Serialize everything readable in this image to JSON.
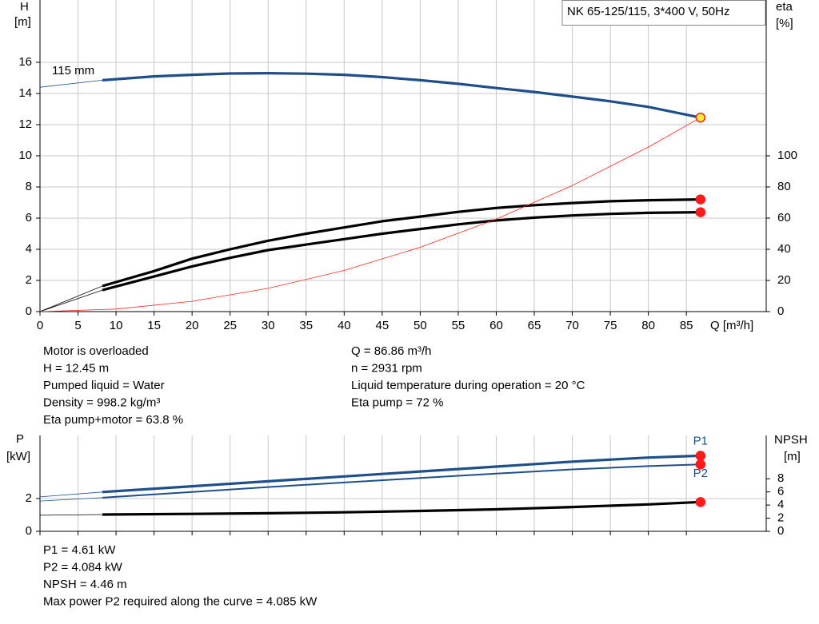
{
  "chart_data": [
    {
      "type": "line",
      "title": "NK 65-125/115, 3*400 V, 50Hz",
      "y_label": "H",
      "y_unit": "[m]",
      "y2_label": "eta",
      "y2_unit": "[%]",
      "x_label": "Q [m³/h]",
      "xlim": [
        0,
        95.5
      ],
      "xticks": [
        0,
        5,
        10,
        15,
        20,
        25,
        30,
        35,
        40,
        45,
        50,
        55,
        60,
        65,
        70,
        75,
        80,
        85
      ],
      "ylim": [
        0,
        20
      ],
      "yticks": [
        0,
        2,
        4,
        6,
        8,
        10,
        12,
        14,
        16
      ],
      "y2lim": [
        0,
        200
      ],
      "y2ticks": [
        0,
        20,
        40,
        60,
        80,
        100
      ],
      "grid": true,
      "x_tick_labels": true,
      "series": [
        {
          "name": "115 mm",
          "color": "#1f4f8a",
          "style": "thick-lead",
          "marker_color": "#ffee33",
          "axis": "y",
          "x": [
            0,
            8.2,
            15,
            20,
            25,
            30,
            35,
            40,
            45,
            50,
            55,
            60,
            65,
            70,
            75,
            80,
            86.86
          ],
          "values": [
            14.4,
            14.85,
            15.1,
            15.2,
            15.28,
            15.3,
            15.27,
            15.2,
            15.05,
            14.85,
            14.62,
            14.35,
            14.1,
            13.8,
            13.5,
            13.14,
            12.45
          ]
        },
        {
          "color": "#000000",
          "style": "thick-lead",
          "marker_color": "#ff1a1a",
          "axis": "y2",
          "x": [
            0,
            8.2,
            15,
            20,
            25,
            30,
            35,
            40,
            45,
            50,
            55,
            60,
            65,
            70,
            75,
            80,
            86.86
          ],
          "values": [
            0,
            16.4,
            26,
            34,
            40,
            45.5,
            50,
            54,
            58,
            61,
            64,
            66.5,
            68.3,
            69.7,
            70.8,
            71.5,
            72
          ]
        },
        {
          "color": "#000000",
          "style": "thick-lead",
          "marker_color": "#ff1a1a",
          "axis": "y2",
          "x": [
            0,
            8.2,
            15,
            20,
            25,
            30,
            35,
            40,
            45,
            50,
            55,
            60,
            65,
            70,
            75,
            80,
            86.86
          ],
          "values": [
            0,
            13.8,
            22.5,
            29,
            34.5,
            39.5,
            43,
            46.5,
            50,
            53,
            56,
            58.5,
            60.3,
            61.7,
            62.7,
            63.4,
            63.8
          ]
        },
        {
          "color": "#ff2020",
          "style": "thin",
          "axis": "y",
          "x": [
            0,
            10,
            20,
            30,
            40,
            50,
            60,
            70,
            80,
            86.86
          ],
          "values": [
            0,
            0.165,
            0.66,
            1.49,
            2.64,
            4.13,
            5.94,
            8.09,
            10.56,
            12.45
          ]
        }
      ]
    },
    {
      "type": "line",
      "y_label": "P",
      "y_unit": "[kW]",
      "y2_label": "NPSH",
      "y2_unit": "[m]",
      "xlim": [
        0,
        95.5
      ],
      "xticks": [
        0,
        5,
        10,
        15,
        20,
        25,
        30,
        35,
        40,
        45,
        50,
        55,
        60,
        65,
        70,
        75,
        80,
        85
      ],
      "ylim": [
        0,
        5.85
      ],
      "yticks": [
        0,
        2
      ],
      "y2lim": [
        0,
        14.6
      ],
      "y2ticks": [
        0,
        2,
        4,
        6,
        8
      ],
      "grid": true,
      "x_tick_labels": false,
      "series": [
        {
          "name": "P1",
          "color": "#1f4f8a",
          "style": "thick-lead",
          "marker_color": "#ff1a1a",
          "axis": "y",
          "x": [
            0,
            8.2,
            20,
            30,
            40,
            50,
            60,
            70,
            80,
            86.86
          ],
          "values": [
            2.1,
            2.4,
            2.75,
            3.05,
            3.35,
            3.65,
            3.95,
            4.25,
            4.5,
            4.61
          ]
        },
        {
          "name": "P2",
          "color": "#1f4f8a",
          "style": "medium-lead",
          "marker_color": "#ff1a1a",
          "axis": "y",
          "x": [
            0,
            8.2,
            20,
            30,
            40,
            50,
            60,
            70,
            80,
            86.86
          ],
          "values": [
            1.85,
            2.05,
            2.4,
            2.7,
            2.98,
            3.25,
            3.52,
            3.78,
            3.98,
            4.084
          ]
        },
        {
          "color": "#000000",
          "style": "thick-lead",
          "marker_color": "#ff1a1a",
          "axis": "y2",
          "x": [
            0,
            8.2,
            20,
            30,
            40,
            50,
            60,
            70,
            80,
            86.86
          ],
          "values": [
            2.45,
            2.55,
            2.65,
            2.75,
            2.9,
            3.1,
            3.35,
            3.7,
            4.1,
            4.46
          ]
        }
      ]
    }
  ],
  "info_top_left": [
    "Motor is overloaded",
    "H = 12.45 m",
    "Pumped liquid = Water",
    "Density = 998.2 kg/m³",
    "Eta pump+motor = 63.8 %"
  ],
  "info_top_right": [
    "Q = 86.86 m³/h",
    "n = 2931 rpm",
    "Liquid temperature during operation = 20 °C",
    "Eta pump = 72 %"
  ],
  "info_bottom": [
    "P1 = 4.61 kW",
    "P2 = 4.084 kW",
    "NPSH = 4.46 m",
    "Max power P2 required along the curve = 4.085 kW"
  ]
}
